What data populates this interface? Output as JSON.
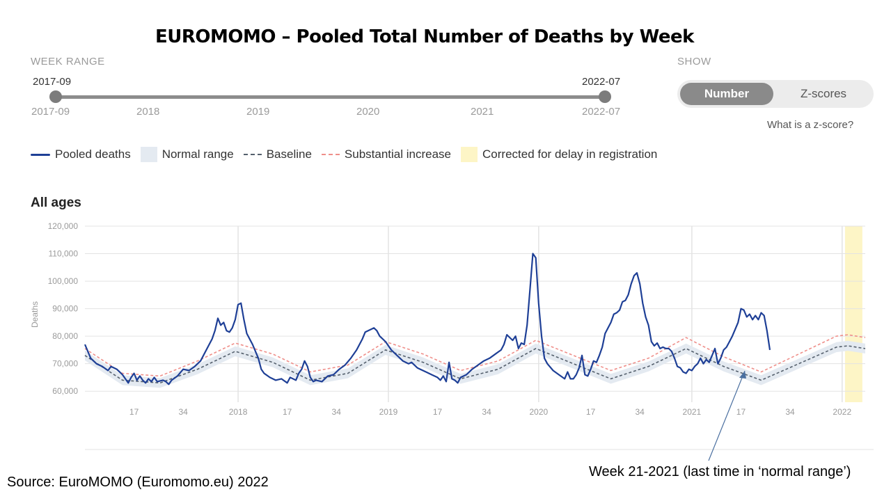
{
  "title": "EUROMOMO – Pooled Total Number of Deaths by Week",
  "week_range": {
    "label": "WEEK RANGE",
    "start_value": "2017-09",
    "end_value": "2022-07",
    "start_tick": "2017-09",
    "end_tick": "2022-07",
    "year_ticks": [
      "2018",
      "2019",
      "2020",
      "2021"
    ]
  },
  "show": {
    "label": "SHOW",
    "options": [
      "Number",
      "Z-scores"
    ],
    "selected": "Number",
    "help_link": "What is a z-score?"
  },
  "legend": [
    {
      "label": "Pooled deaths",
      "symbol": "line",
      "color": "#1e3f96"
    },
    {
      "label": "Normal range",
      "symbol": "box",
      "color": "#e4eaf1"
    },
    {
      "label": "Baseline",
      "symbol": "dash",
      "color": "#55606d"
    },
    {
      "label": "Substantial increase",
      "symbol": "dash",
      "color": "#ef8f8a"
    },
    {
      "label": "Corrected for delay in registration",
      "symbol": "box",
      "color": "#fdf5c6"
    }
  ],
  "chart_title": "All ages",
  "source": "Source: EuroMOMO (Euromomo.eu) 2022",
  "annotation": "Week 21-2021 (last time in ‘normal range’)",
  "chart_data": {
    "type": "line",
    "title": "All ages",
    "ylabel": "Deaths",
    "xlabel": "",
    "ylim": [
      56000,
      120000
    ],
    "yticks": [
      60000,
      70000,
      80000,
      90000,
      100000,
      110000,
      120000
    ],
    "ytick_labels": [
      "60,000",
      "70,000",
      "80,000",
      "90,000",
      "100,000",
      "110,000",
      "120,000"
    ],
    "x_start": "2017-09",
    "x_end": "2022-07",
    "xticks": [
      {
        "label": "17",
        "week": 17
      },
      {
        "label": "34",
        "week": 34
      },
      {
        "label": "2018",
        "week": 53,
        "year": true
      },
      {
        "label": "17",
        "week": 70
      },
      {
        "label": "34",
        "week": 87
      },
      {
        "label": "2019",
        "week": 105,
        "year": true
      },
      {
        "label": "17",
        "week": 122
      },
      {
        "label": "34",
        "week": 139
      },
      {
        "label": "2020",
        "week": 157,
        "year": true
      },
      {
        "label": "17",
        "week": 175
      },
      {
        "label": "34",
        "week": 192
      },
      {
        "label": "2021",
        "week": 210,
        "year": true
      },
      {
        "label": "17",
        "week": 227
      },
      {
        "label": "34",
        "week": 244
      },
      {
        "label": "2022",
        "week": 262,
        "year": true
      }
    ],
    "delay_band_weeks": [
      263,
      269
    ],
    "legend_position": "top",
    "grid": true,
    "series": [
      {
        "name": "Pooled deaths",
        "color": "#1e3f96",
        "points": [
          [
            0,
            77000
          ],
          [
            2,
            72000
          ],
          [
            4,
            70000
          ],
          [
            6,
            69000
          ],
          [
            8,
            67500
          ],
          [
            9,
            69000
          ],
          [
            11,
            68000
          ],
          [
            13,
            66000
          ],
          [
            14,
            64500
          ],
          [
            15,
            63000
          ],
          [
            16,
            65000
          ],
          [
            17,
            66500
          ],
          [
            18,
            64000
          ],
          [
            19,
            65500
          ],
          [
            20,
            64000
          ],
          [
            21,
            63000
          ],
          [
            22,
            64500
          ],
          [
            23,
            63500
          ],
          [
            24,
            65000
          ],
          [
            25,
            63500
          ],
          [
            27,
            64000
          ],
          [
            28,
            63500
          ],
          [
            29,
            62500
          ],
          [
            30,
            64000
          ],
          [
            32,
            65500
          ],
          [
            34,
            68000
          ],
          [
            36,
            67500
          ],
          [
            38,
            69000
          ],
          [
            40,
            71000
          ],
          [
            42,
            75000
          ],
          [
            44,
            79000
          ],
          [
            45,
            82000
          ],
          [
            46,
            86500
          ],
          [
            47,
            84000
          ],
          [
            48,
            85000
          ],
          [
            49,
            82000
          ],
          [
            50,
            81500
          ],
          [
            51,
            83000
          ],
          [
            52,
            86000
          ],
          [
            53,
            91500
          ],
          [
            54,
            92000
          ],
          [
            55,
            86000
          ],
          [
            56,
            81000
          ],
          [
            58,
            77000
          ],
          [
            60,
            72000
          ],
          [
            61,
            68000
          ],
          [
            62,
            66500
          ],
          [
            64,
            65000
          ],
          [
            66,
            64000
          ],
          [
            68,
            64500
          ],
          [
            70,
            63000
          ],
          [
            71,
            65000
          ],
          [
            73,
            64000
          ],
          [
            74,
            66500
          ],
          [
            75,
            68000
          ],
          [
            76,
            71000
          ],
          [
            77,
            69000
          ],
          [
            78,
            65000
          ],
          [
            79,
            63500
          ],
          [
            80,
            64000
          ],
          [
            82,
            63500
          ],
          [
            84,
            65500
          ],
          [
            86,
            66000
          ],
          [
            88,
            68000
          ],
          [
            90,
            69500
          ],
          [
            92,
            72000
          ],
          [
            94,
            75000
          ],
          [
            96,
            79000
          ],
          [
            97,
            81500
          ],
          [
            98,
            82000
          ],
          [
            100,
            83000
          ],
          [
            101,
            82000
          ],
          [
            102,
            80000
          ],
          [
            104,
            78000
          ],
          [
            106,
            75000
          ],
          [
            108,
            73000
          ],
          [
            110,
            71000
          ],
          [
            112,
            70000
          ],
          [
            113,
            70500
          ],
          [
            115,
            68500
          ],
          [
            116,
            68000
          ],
          [
            118,
            67000
          ],
          [
            120,
            66000
          ],
          [
            122,
            65000
          ],
          [
            123,
            64000
          ],
          [
            124,
            65500
          ],
          [
            125,
            63500
          ],
          [
            126,
            70500
          ],
          [
            127,
            64500
          ],
          [
            128,
            64000
          ],
          [
            129,
            63000
          ],
          [
            130,
            65000
          ],
          [
            132,
            66000
          ],
          [
            134,
            68000
          ],
          [
            136,
            69500
          ],
          [
            138,
            71000
          ],
          [
            140,
            72000
          ],
          [
            142,
            73500
          ],
          [
            144,
            75000
          ],
          [
            145,
            77000
          ],
          [
            146,
            80500
          ],
          [
            147,
            79500
          ],
          [
            148,
            78500
          ],
          [
            149,
            80000
          ],
          [
            150,
            75500
          ],
          [
            151,
            77500
          ],
          [
            152,
            77000
          ],
          [
            153,
            84000
          ],
          [
            154,
            97000
          ],
          [
            155,
            110000
          ],
          [
            156,
            108500
          ],
          [
            157,
            92000
          ],
          [
            158,
            80000
          ],
          [
            159,
            72000
          ],
          [
            160,
            70000
          ],
          [
            162,
            67500
          ],
          [
            164,
            66000
          ],
          [
            166,
            64500
          ],
          [
            167,
            67000
          ],
          [
            168,
            64500
          ],
          [
            169,
            64500
          ],
          [
            170,
            66000
          ],
          [
            171,
            68500
          ],
          [
            172,
            73000
          ],
          [
            173,
            66000
          ],
          [
            174,
            65500
          ],
          [
            175,
            68000
          ],
          [
            176,
            71000
          ],
          [
            177,
            70500
          ],
          [
            178,
            73000
          ],
          [
            179,
            76000
          ],
          [
            180,
            81000
          ],
          [
            182,
            85000
          ],
          [
            183,
            88000
          ],
          [
            184,
            88500
          ],
          [
            185,
            89500
          ],
          [
            186,
            92500
          ],
          [
            187,
            93000
          ],
          [
            188,
            95000
          ],
          [
            189,
            99000
          ],
          [
            190,
            102000
          ],
          [
            191,
            103000
          ],
          [
            192,
            99000
          ],
          [
            193,
            92000
          ],
          [
            194,
            87000
          ],
          [
            195,
            84000
          ],
          [
            196,
            78000
          ],
          [
            197,
            76500
          ],
          [
            198,
            77500
          ],
          [
            199,
            75500
          ],
          [
            200,
            76000
          ],
          [
            201,
            75500
          ],
          [
            202,
            75500
          ],
          [
            203,
            74500
          ],
          [
            204,
            72000
          ],
          [
            205,
            69000
          ],
          [
            206,
            68500
          ],
          [
            207,
            67000
          ],
          [
            208,
            66500
          ],
          [
            209,
            68000
          ],
          [
            210,
            67500
          ],
          [
            211,
            69000
          ],
          [
            212,
            70000
          ],
          [
            213,
            72000
          ],
          [
            214,
            70000
          ],
          [
            215,
            71500
          ],
          [
            216,
            70500
          ],
          [
            217,
            73000
          ],
          [
            218,
            75500
          ],
          [
            219,
            70000
          ],
          [
            220,
            72000
          ],
          [
            221,
            75000
          ],
          [
            222,
            76000
          ],
          [
            223,
            78000
          ],
          [
            224,
            80000
          ],
          [
            225,
            82500
          ],
          [
            226,
            85000
          ],
          [
            227,
            90000
          ],
          [
            228,
            89500
          ],
          [
            229,
            87000
          ],
          [
            230,
            88000
          ],
          [
            231,
            86000
          ],
          [
            232,
            87500
          ],
          [
            233,
            86000
          ],
          [
            234,
            88500
          ],
          [
            235,
            87500
          ],
          [
            236,
            82000
          ],
          [
            237,
            75000
          ]
        ]
      },
      {
        "name": "Baseline",
        "color": "#55606d",
        "points": [
          [
            0,
            73000
          ],
          [
            13,
            64000
          ],
          [
            26,
            63000
          ],
          [
            39,
            68000
          ],
          [
            52,
            74500
          ],
          [
            65,
            70500
          ],
          [
            78,
            64000
          ],
          [
            91,
            66500
          ],
          [
            104,
            75000
          ],
          [
            117,
            70500
          ],
          [
            130,
            64500
          ],
          [
            143,
            68000
          ],
          [
            156,
            75500
          ],
          [
            169,
            70000
          ],
          [
            182,
            64500
          ],
          [
            195,
            69000
          ],
          [
            208,
            75500
          ],
          [
            221,
            69000
          ],
          [
            234,
            64000
          ],
          [
            247,
            70000
          ],
          [
            260,
            76000
          ],
          [
            264,
            76500
          ],
          [
            270,
            75500
          ]
        ]
      },
      {
        "name": "Substantial increase",
        "color": "#ef8f8a",
        "points": [
          [
            0,
            75500
          ],
          [
            13,
            66500
          ],
          [
            26,
            65500
          ],
          [
            39,
            71000
          ],
          [
            52,
            77500
          ],
          [
            65,
            73500
          ],
          [
            78,
            67000
          ],
          [
            91,
            69500
          ],
          [
            104,
            78000
          ],
          [
            117,
            73500
          ],
          [
            130,
            67500
          ],
          [
            143,
            71000
          ],
          [
            156,
            78500
          ],
          [
            169,
            73000
          ],
          [
            182,
            67500
          ],
          [
            195,
            72000
          ],
          [
            208,
            79500
          ],
          [
            221,
            72500
          ],
          [
            234,
            67000
          ],
          [
            247,
            73500
          ],
          [
            260,
            80000
          ],
          [
            264,
            80500
          ],
          [
            270,
            79500
          ]
        ]
      }
    ],
    "normal_range_halfwidth": 1800
  }
}
